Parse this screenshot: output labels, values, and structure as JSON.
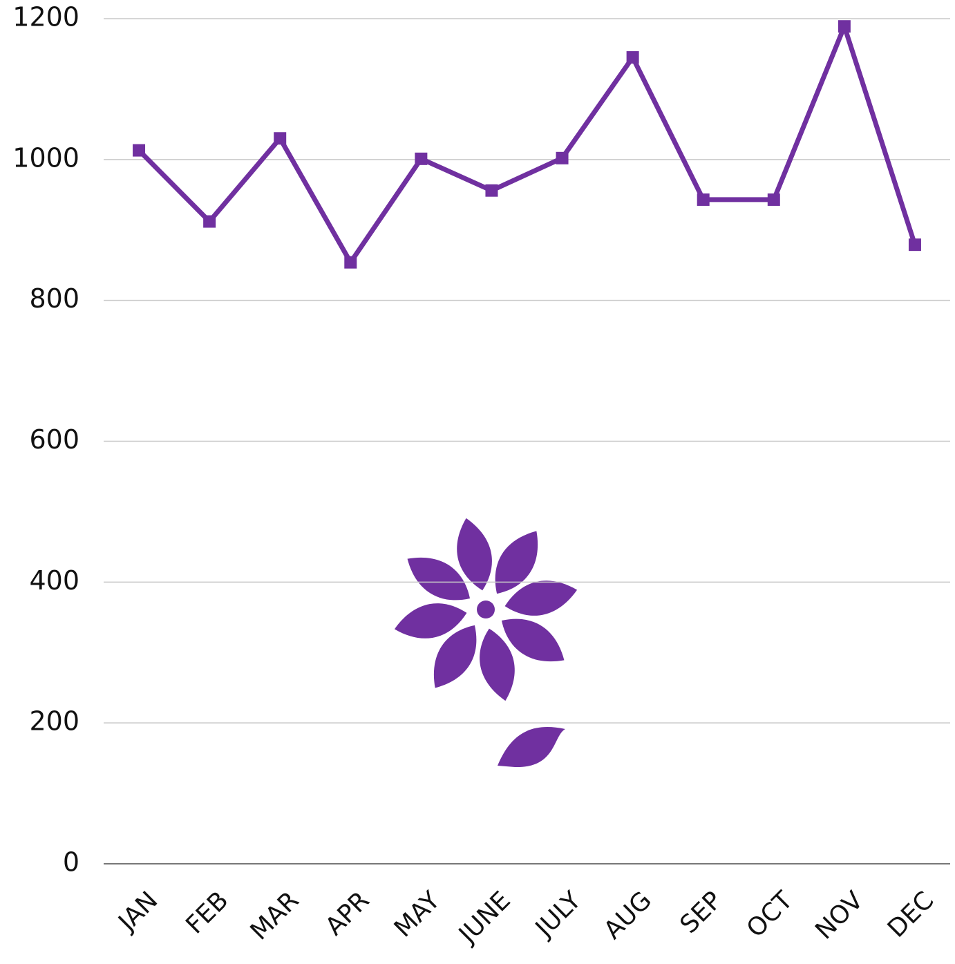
{
  "chart_data": {
    "type": "line",
    "categories": [
      "JAN",
      "FEB",
      "MAR",
      "APR",
      "MAY",
      "JUNE",
      "JULY",
      "AUG",
      "SEP",
      "OCT",
      "NOV",
      "DEC"
    ],
    "values": [
      1013,
      912,
      1030,
      854,
      1001,
      956,
      1002,
      1145,
      943,
      943,
      1189,
      879
    ],
    "color": "#7030a0",
    "ylim": [
      0,
      1200
    ],
    "yticks": [
      0,
      200,
      400,
      600,
      800,
      1000,
      1200
    ],
    "grid": true
  }
}
